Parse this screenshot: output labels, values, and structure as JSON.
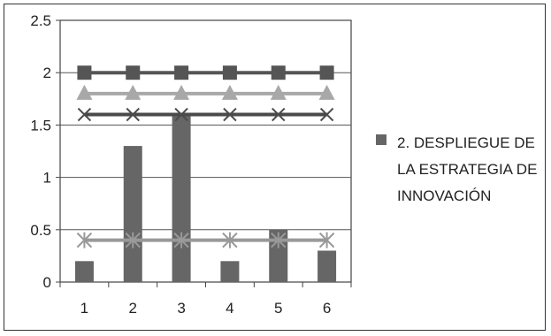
{
  "chart_data": {
    "type": "bar",
    "title": "",
    "xlabel": "",
    "ylabel": "",
    "categories": [
      "1",
      "2",
      "3",
      "4",
      "5",
      "6"
    ],
    "ylim": [
      0,
      2.5
    ],
    "yticks": [
      "0",
      "0.5",
      "1",
      "1.5",
      "2",
      "2.5"
    ],
    "grid": true,
    "legend_position": "right",
    "legend": {
      "lines": [
        "2. DESPLIEGUE DE",
        "LA ESTRATEGIA DE",
        "INNOVACIÓN"
      ]
    },
    "series": [
      {
        "kind": "bar",
        "values": [
          0.2,
          1.3,
          1.6,
          0.2,
          0.5,
          0.3
        ],
        "color": "#666666"
      },
      {
        "kind": "line",
        "marker": "square",
        "values": [
          2,
          2,
          2,
          2,
          2,
          2
        ],
        "color": "#555555"
      },
      {
        "kind": "line",
        "marker": "triangle",
        "values": [
          1.8,
          1.8,
          1.8,
          1.8,
          1.8,
          1.8
        ],
        "color": "#a8a8a8"
      },
      {
        "kind": "line",
        "marker": "x",
        "values": [
          1.6,
          1.6,
          1.6,
          1.6,
          1.6,
          1.6
        ],
        "color": "#4a4a4a"
      },
      {
        "kind": "line",
        "marker": "asterisk",
        "values": [
          0.4,
          0.4,
          0.4,
          0.4,
          0.4,
          0.4
        ],
        "color": "#999999"
      }
    ]
  }
}
